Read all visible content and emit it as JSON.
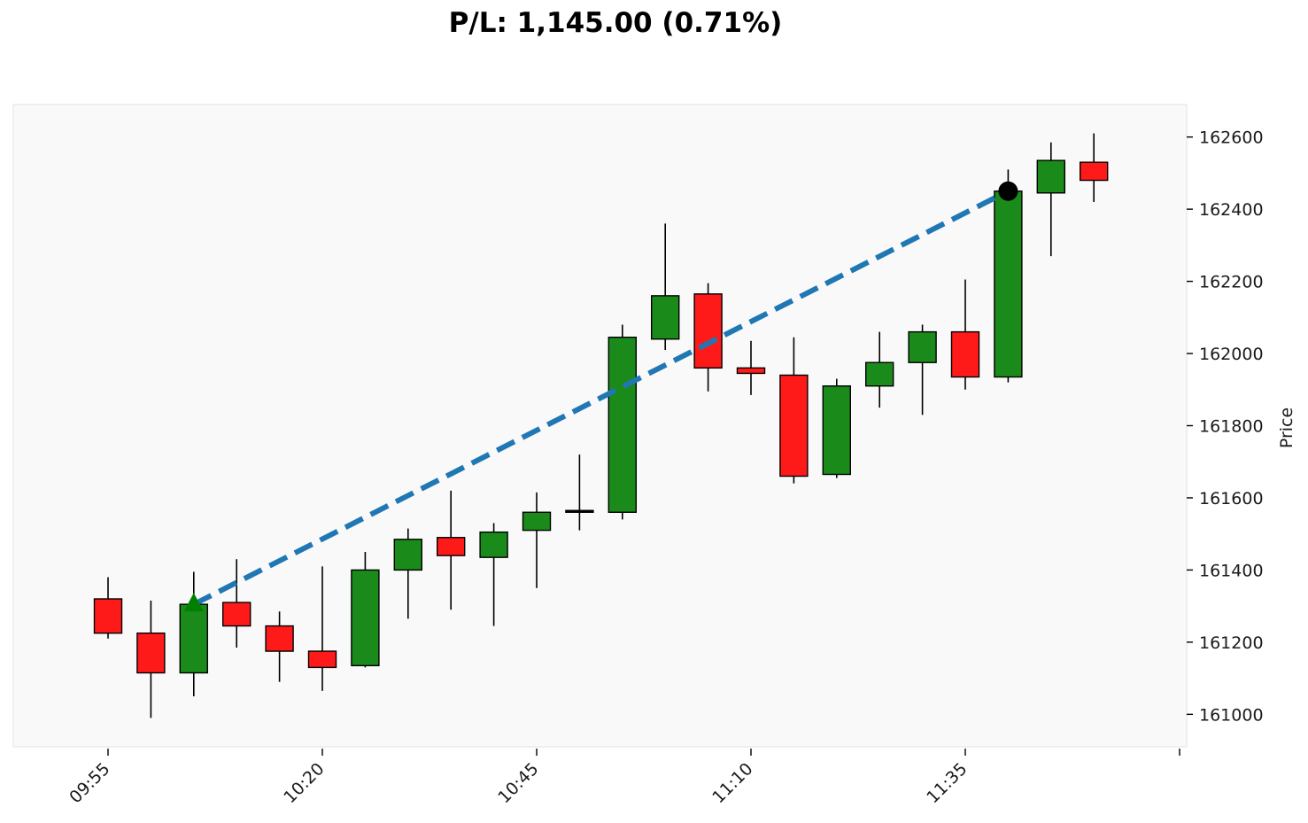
{
  "title": "P/L: 1,145.00 (0.71%)",
  "chart_data": {
    "type": "candlestick",
    "ylabel": "Price",
    "xlabel": "",
    "ylim": [
      160910,
      162690
    ],
    "y_ticks": [
      161000,
      161200,
      161400,
      161600,
      161800,
      162000,
      162200,
      162400,
      162600
    ],
    "x_tick_labels": [
      "09:55",
      "10:20",
      "10:45",
      "11:10",
      "11:35"
    ],
    "x_tick_times": [
      "09:55",
      "10:20",
      "10:45",
      "11:10",
      "11:35",
      "12:00"
    ],
    "interval_minutes": 5,
    "x_range": [
      "09:50",
      "12:00"
    ],
    "grid": false,
    "legend": "none",
    "colors": {
      "up": "#1a8a1a",
      "down": "#ff1a1a",
      "doji": "#000000",
      "background": "#f9f9f9",
      "pl_line": "#1f77b4",
      "entry_marker": "#008000",
      "exit_marker": "#000000"
    },
    "candles": [
      {
        "time": "09:55",
        "open": 161320,
        "high": 161380,
        "low": 161210,
        "close": 161225
      },
      {
        "time": "10:00",
        "open": 161225,
        "high": 161315,
        "low": 160990,
        "close": 161115
      },
      {
        "time": "10:05",
        "open": 161115,
        "high": 161395,
        "low": 161050,
        "close": 161305
      },
      {
        "time": "10:10",
        "open": 161310,
        "high": 161430,
        "low": 161185,
        "close": 161245
      },
      {
        "time": "10:15",
        "open": 161245,
        "high": 161285,
        "low": 161090,
        "close": 161175
      },
      {
        "time": "10:20",
        "open": 161175,
        "high": 161410,
        "low": 161065,
        "close": 161130
      },
      {
        "time": "10:25",
        "open": 161135,
        "high": 161450,
        "low": 161130,
        "close": 161400
      },
      {
        "time": "10:30",
        "open": 161400,
        "high": 161515,
        "low": 161265,
        "close": 161485
      },
      {
        "time": "10:35",
        "open": 161490,
        "high": 161620,
        "low": 161290,
        "close": 161440
      },
      {
        "time": "10:40",
        "open": 161435,
        "high": 161530,
        "low": 161245,
        "close": 161505
      },
      {
        "time": "10:45",
        "open": 161510,
        "high": 161615,
        "low": 161350,
        "close": 161560
      },
      {
        "time": "10:50",
        "open": 161560,
        "high": 161720,
        "low": 161510,
        "close": 161565
      },
      {
        "time": "10:55",
        "open": 161560,
        "high": 162080,
        "low": 161540,
        "close": 162045
      },
      {
        "time": "11:00",
        "open": 162040,
        "high": 162360,
        "low": 162010,
        "close": 162160
      },
      {
        "time": "11:05",
        "open": 162165,
        "high": 162195,
        "low": 161895,
        "close": 161960
      },
      {
        "time": "11:10",
        "open": 161960,
        "high": 162035,
        "low": 161885,
        "close": 161945
      },
      {
        "time": "11:15",
        "open": 161940,
        "high": 162045,
        "low": 161640,
        "close": 161660
      },
      {
        "time": "11:20",
        "open": 161665,
        "high": 161930,
        "low": 161655,
        "close": 161910
      },
      {
        "time": "11:25",
        "open": 161910,
        "high": 162060,
        "low": 161850,
        "close": 161975
      },
      {
        "time": "11:30",
        "open": 161975,
        "high": 162080,
        "low": 161830,
        "close": 162060
      },
      {
        "time": "11:35",
        "open": 162060,
        "high": 162205,
        "low": 161900,
        "close": 161935
      },
      {
        "time": "11:40",
        "open": 161935,
        "high": 162510,
        "low": 161920,
        "close": 162450
      },
      {
        "time": "11:45",
        "open": 162445,
        "high": 162585,
        "low": 162270,
        "close": 162535
      },
      {
        "time": "11:50",
        "open": 162530,
        "high": 162610,
        "low": 162420,
        "close": 162480
      }
    ],
    "trade": {
      "entry": {
        "time": "10:05",
        "price": 161305
      },
      "exit": {
        "time": "11:40",
        "price": 162450
      }
    }
  }
}
